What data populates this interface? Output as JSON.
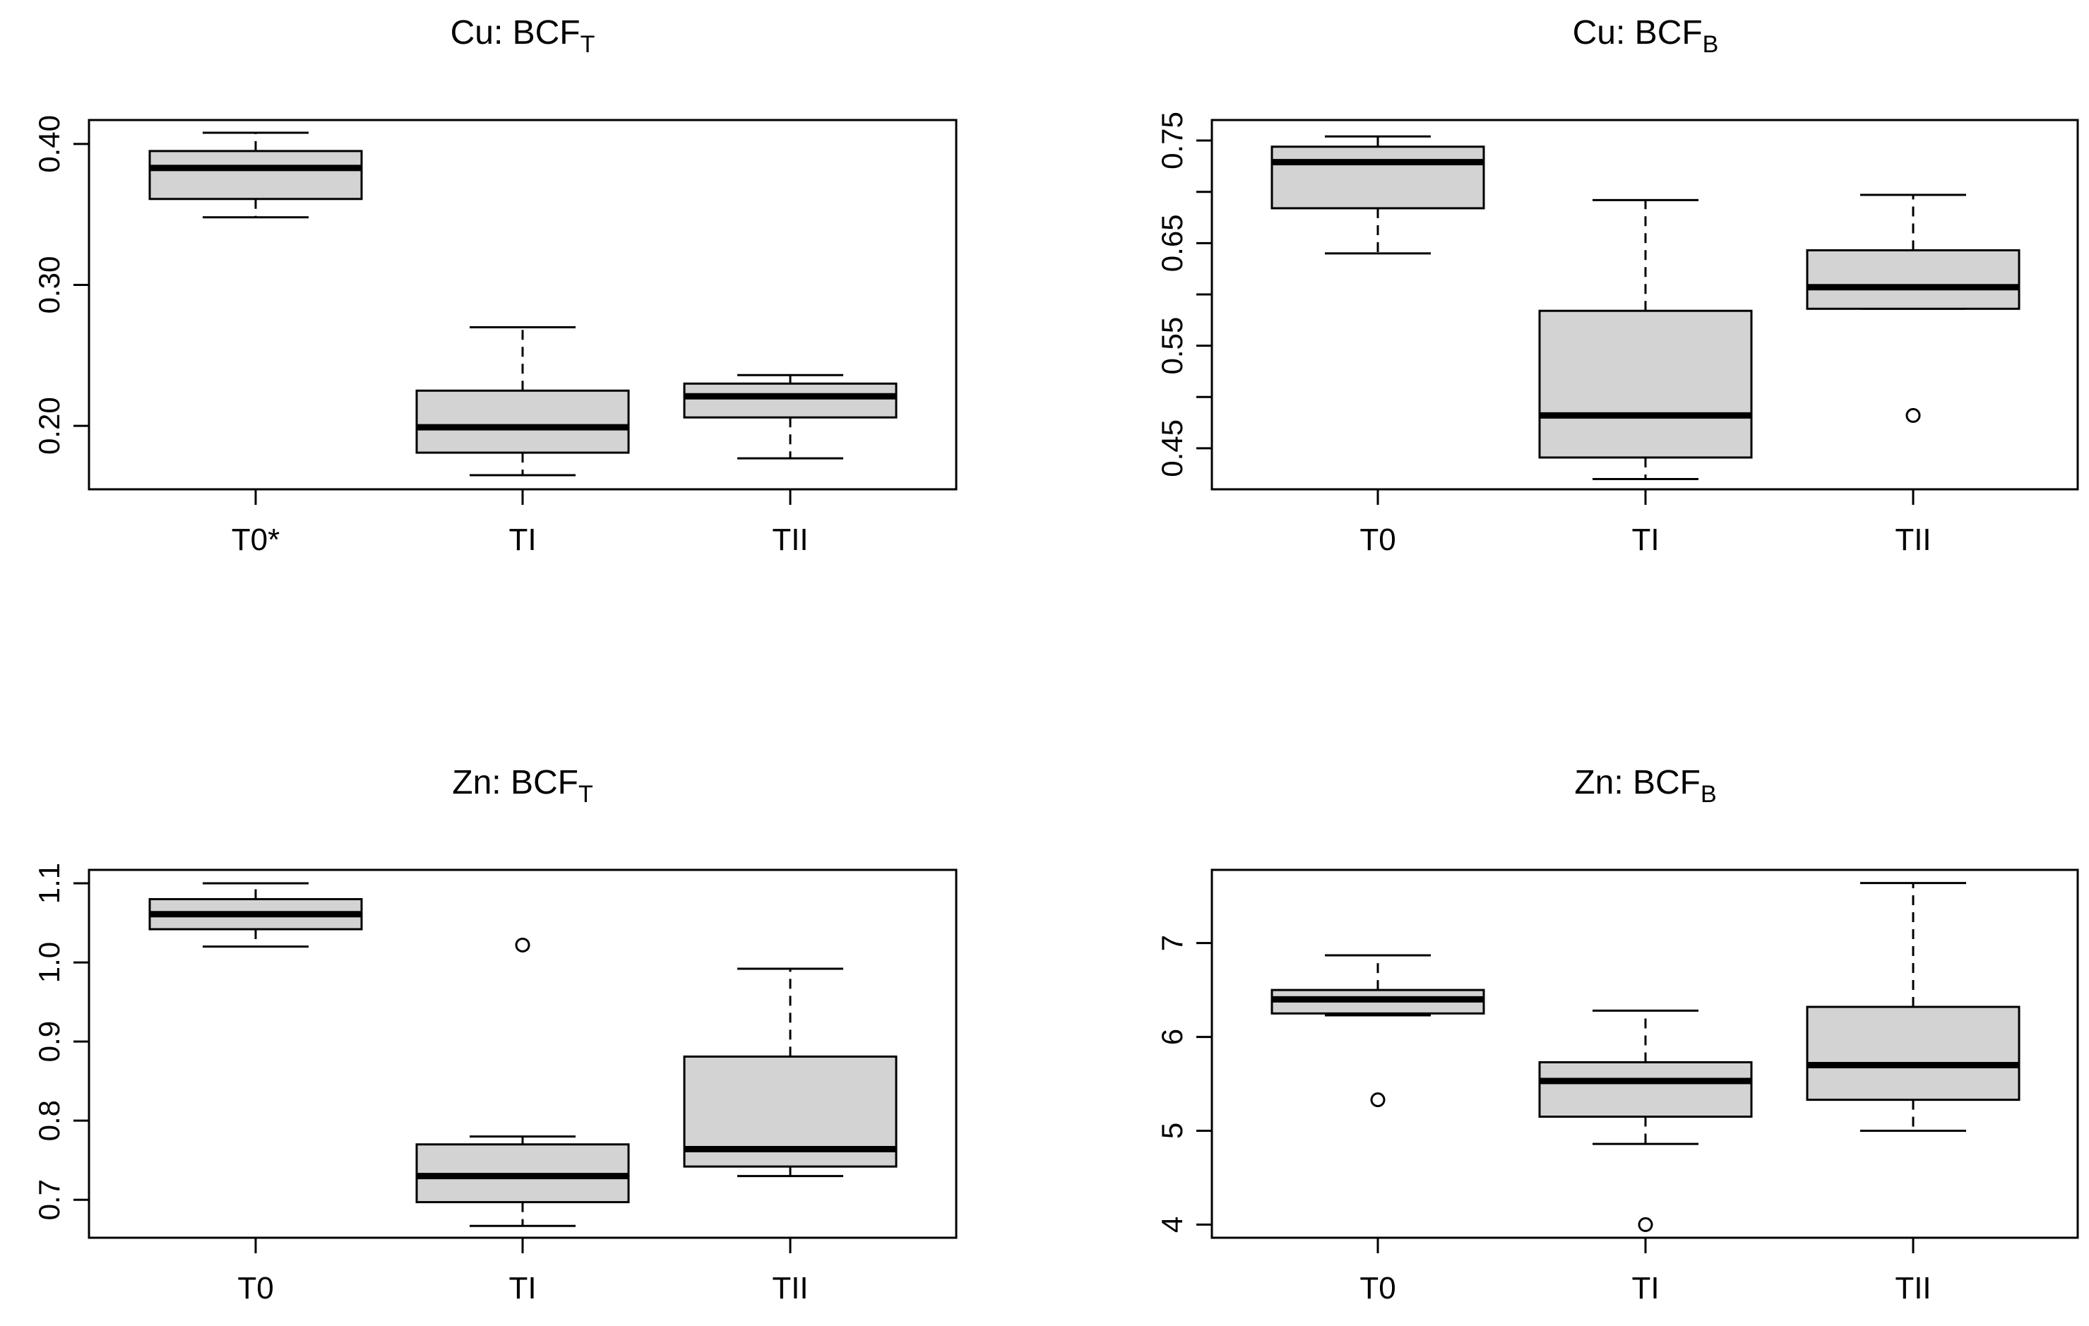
{
  "colors": {
    "box_fill": "#d3d3d3",
    "line": "#000000",
    "background": "#ffffff"
  },
  "chart_data": [
    {
      "type": "boxplot",
      "title_main": "Cu: BCF",
      "title_sub": "T",
      "categories": [
        "T0*",
        "TI",
        "TII"
      ],
      "ylim": [
        0.155,
        0.417
      ],
      "yticks": [
        0.2,
        0.3,
        0.4
      ],
      "ytick_labels": [
        "0.20",
        "0.30",
        "0.40"
      ],
      "boxes": [
        {
          "whisker_low": 0.348,
          "q1": 0.361,
          "median": 0.383,
          "q3": 0.395,
          "whisker_high": 0.408,
          "outliers": []
        },
        {
          "whisker_low": 0.165,
          "q1": 0.181,
          "median": 0.199,
          "q3": 0.225,
          "whisker_high": 0.27,
          "outliers": []
        },
        {
          "whisker_low": 0.177,
          "q1": 0.206,
          "median": 0.221,
          "q3": 0.23,
          "whisker_high": 0.236,
          "outliers": []
        }
      ]
    },
    {
      "type": "boxplot",
      "title_main": "Cu: BCF",
      "title_sub": "B",
      "categories": [
        "T0",
        "TI",
        "TII"
      ],
      "ylim": [
        0.41,
        0.77
      ],
      "yticks": [
        0.45,
        0.5,
        0.55,
        0.6,
        0.65,
        0.7,
        0.75
      ],
      "ytick_labels": [
        "0.45",
        "",
        "0.55",
        "",
        "0.65",
        "",
        "0.75"
      ],
      "boxes": [
        {
          "whisker_low": 0.64,
          "q1": 0.684,
          "median": 0.729,
          "q3": 0.744,
          "whisker_high": 0.754,
          "outliers": []
        },
        {
          "whisker_low": 0.42,
          "q1": 0.441,
          "median": 0.482,
          "q3": 0.584,
          "whisker_high": 0.692,
          "outliers": []
        },
        {
          "whisker_low": 0.586,
          "q1": 0.586,
          "median": 0.607,
          "q3": 0.643,
          "whisker_high": 0.697,
          "outliers": [
            0.482
          ]
        }
      ]
    },
    {
      "type": "boxplot",
      "title_main": "Zn: BCF",
      "title_sub": "T",
      "categories": [
        "T0",
        "TI",
        "TII"
      ],
      "ylim": [
        0.652,
        1.117
      ],
      "yticks": [
        0.7,
        0.8,
        0.9,
        1.0,
        1.1
      ],
      "ytick_labels": [
        "0.7",
        "0.8",
        "0.9",
        "1.0",
        "1.1"
      ],
      "boxes": [
        {
          "whisker_low": 1.02,
          "q1": 1.042,
          "median": 1.061,
          "q3": 1.08,
          "whisker_high": 1.1,
          "outliers": []
        },
        {
          "whisker_low": 0.667,
          "q1": 0.697,
          "median": 0.73,
          "q3": 0.77,
          "whisker_high": 0.78,
          "outliers": [
            1.022
          ]
        },
        {
          "whisker_low": 0.73,
          "q1": 0.742,
          "median": 0.764,
          "q3": 0.881,
          "whisker_high": 0.992,
          "outliers": []
        }
      ]
    },
    {
      "type": "boxplot",
      "title_main": "Zn: BCF",
      "title_sub": "B",
      "categories": [
        "T0",
        "TI",
        "TII"
      ],
      "ylim": [
        3.86,
        7.78
      ],
      "yticks": [
        4,
        5,
        6,
        7
      ],
      "ytick_labels": [
        "4",
        "5",
        "6",
        "7"
      ],
      "boxes": [
        {
          "whisker_low": 6.23,
          "q1": 6.25,
          "median": 6.4,
          "q3": 6.5,
          "whisker_high": 6.87,
          "outliers": [
            5.33
          ]
        },
        {
          "whisker_low": 4.86,
          "q1": 5.15,
          "median": 5.53,
          "q3": 5.73,
          "whisker_high": 6.28,
          "outliers": [
            4.0
          ]
        },
        {
          "whisker_low": 5.0,
          "q1": 5.33,
          "median": 5.7,
          "q3": 6.32,
          "whisker_high": 7.64,
          "outliers": []
        }
      ]
    }
  ]
}
